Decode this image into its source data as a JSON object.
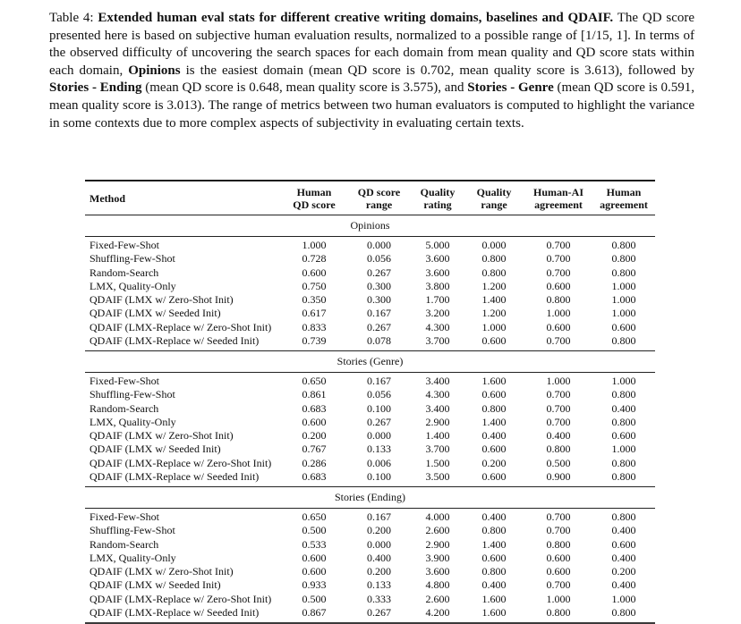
{
  "page": {
    "background_color": "#ffffff",
    "text_color": "#111111"
  },
  "caption": {
    "segments": [
      {
        "text": "Table 4: ",
        "bold": false
      },
      {
        "text": "Extended human eval stats for different creative writing domains, baselines and QDAIF.",
        "bold": true
      },
      {
        "text": " The QD score presented here is based on subjective human evaluation results, normalized to a possible range of [1/15, 1]. In terms of the observed difficulty of uncovering the search spaces for each domain from mean quality and QD score stats within each domain, ",
        "bold": false
      },
      {
        "text": "Opinions",
        "bold": true
      },
      {
        "text": " is the easiest domain (mean QD score is 0.702, mean quality score is 3.613), followed by ",
        "bold": false
      },
      {
        "text": "Stories - Ending",
        "bold": true
      },
      {
        "text": " (mean QD score is 0.648, mean quality score is 3.575), and ",
        "bold": false
      },
      {
        "text": "Stories - Genre",
        "bold": true
      },
      {
        "text": " (mean QD score is 0.591, mean quality score is 3.013). The range of metrics between two human evaluators is computed to highlight the variance in some contexts due to more complex aspects of subjectivity in evaluating certain texts.",
        "bold": false
      }
    ]
  },
  "table": {
    "columns": [
      {
        "id": "method",
        "label": "Method"
      },
      {
        "id": "human_qd_score",
        "label": "Human\nQD score"
      },
      {
        "id": "qd_score_range",
        "label": "QD score\nrange"
      },
      {
        "id": "quality_rating",
        "label": "Quality\nrating"
      },
      {
        "id": "quality_range",
        "label": "Quality\nrange"
      },
      {
        "id": "human_ai_agreement",
        "label": "Human-AI\nagreement"
      },
      {
        "id": "human_agreement",
        "label": "Human\nagreement"
      }
    ],
    "sections": [
      {
        "title": "Opinions",
        "rows": [
          {
            "method": "Fixed-Few-Shot",
            "values": [
              "1.000",
              "0.000",
              "5.000",
              "0.000",
              "0.700",
              "0.800"
            ]
          },
          {
            "method": "Shuffling-Few-Shot",
            "values": [
              "0.728",
              "0.056",
              "3.600",
              "0.800",
              "0.700",
              "0.800"
            ]
          },
          {
            "method": "Random-Search",
            "values": [
              "0.600",
              "0.267",
              "3.600",
              "0.800",
              "0.700",
              "0.800"
            ]
          },
          {
            "method": "LMX, Quality-Only",
            "values": [
              "0.750",
              "0.300",
              "3.800",
              "1.200",
              "0.600",
              "1.000"
            ]
          },
          {
            "method": "QDAIF (LMX w/ Zero-Shot Init)",
            "values": [
              "0.350",
              "0.300",
              "1.700",
              "1.400",
              "0.800",
              "1.000"
            ]
          },
          {
            "method": "QDAIF (LMX w/ Seeded Init)",
            "values": [
              "0.617",
              "0.167",
              "3.200",
              "1.200",
              "1.000",
              "1.000"
            ]
          },
          {
            "method": "QDAIF (LMX-Replace w/ Zero-Shot Init)",
            "values": [
              "0.833",
              "0.267",
              "4.300",
              "1.000",
              "0.600",
              "0.600"
            ]
          },
          {
            "method": "QDAIF (LMX-Replace w/ Seeded Init)",
            "values": [
              "0.739",
              "0.078",
              "3.700",
              "0.600",
              "0.700",
              "0.800"
            ]
          }
        ]
      },
      {
        "title": "Stories (Genre)",
        "rows": [
          {
            "method": "Fixed-Few-Shot",
            "values": [
              "0.650",
              "0.167",
              "3.400",
              "1.600",
              "1.000",
              "1.000"
            ]
          },
          {
            "method": "Shuffling-Few-Shot",
            "values": [
              "0.861",
              "0.056",
              "4.300",
              "0.600",
              "0.700",
              "0.800"
            ]
          },
          {
            "method": "Random-Search",
            "values": [
              "0.683",
              "0.100",
              "3.400",
              "0.800",
              "0.700",
              "0.400"
            ]
          },
          {
            "method": "LMX, Quality-Only",
            "values": [
              "0.600",
              "0.267",
              "2.900",
              "1.400",
              "0.700",
              "0.800"
            ]
          },
          {
            "method": "QDAIF (LMX w/ Zero-Shot Init)",
            "values": [
              "0.200",
              "0.000",
              "1.400",
              "0.400",
              "0.400",
              "0.600"
            ]
          },
          {
            "method": "QDAIF (LMX w/ Seeded Init)",
            "values": [
              "0.767",
              "0.133",
              "3.700",
              "0.600",
              "0.800",
              "1.000"
            ]
          },
          {
            "method": "QDAIF (LMX-Replace w/ Zero-Shot Init)",
            "values": [
              "0.286",
              "0.006",
              "1.500",
              "0.200",
              "0.500",
              "0.800"
            ]
          },
          {
            "method": "QDAIF (LMX-Replace w/ Seeded Init)",
            "values": [
              "0.683",
              "0.100",
              "3.500",
              "0.600",
              "0.900",
              "0.800"
            ]
          }
        ]
      },
      {
        "title": "Stories (Ending)",
        "rows": [
          {
            "method": "Fixed-Few-Shot",
            "values": [
              "0.650",
              "0.167",
              "4.000",
              "0.400",
              "0.700",
              "0.800"
            ]
          },
          {
            "method": "Shuffling-Few-Shot",
            "values": [
              "0.500",
              "0.200",
              "2.600",
              "0.800",
              "0.700",
              "0.400"
            ]
          },
          {
            "method": "Random-Search",
            "values": [
              "0.533",
              "0.000",
              "2.900",
              "1.400",
              "0.800",
              "0.600"
            ]
          },
          {
            "method": "LMX, Quality-Only",
            "values": [
              "0.600",
              "0.400",
              "3.900",
              "0.600",
              "0.600",
              "0.400"
            ]
          },
          {
            "method": "QDAIF (LMX w/ Zero-Shot Init)",
            "values": [
              "0.600",
              "0.200",
              "3.600",
              "0.800",
              "0.600",
              "0.200"
            ]
          },
          {
            "method": "QDAIF (LMX w/ Seeded Init)",
            "values": [
              "0.933",
              "0.133",
              "4.800",
              "0.400",
              "0.700",
              "0.400"
            ]
          },
          {
            "method": "QDAIF (LMX-Replace w/ Zero-Shot Init)",
            "values": [
              "0.500",
              "0.333",
              "2.600",
              "1.600",
              "1.000",
              "1.000"
            ]
          },
          {
            "method": "QDAIF (LMX-Replace w/ Seeded Init)",
            "values": [
              "0.867",
              "0.267",
              "4.200",
              "1.600",
              "0.800",
              "0.800"
            ]
          }
        ]
      }
    ]
  }
}
